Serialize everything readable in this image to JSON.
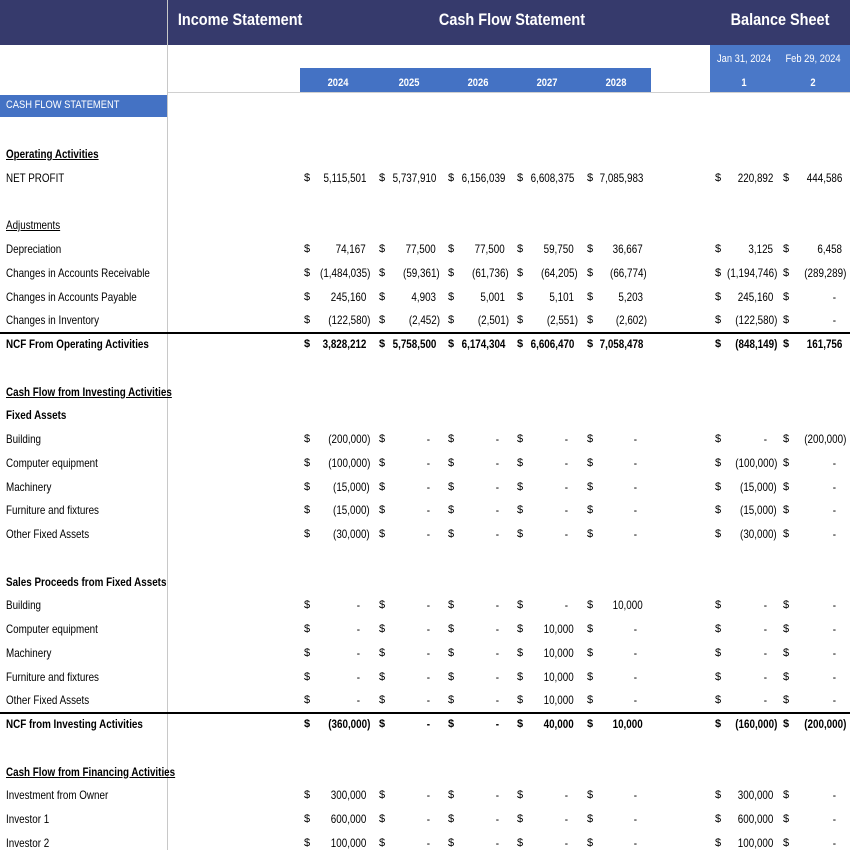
{
  "tabs": {
    "income": "Income Statement",
    "cash_flow": "Cash Flow Statement",
    "balance": "Balance Sheet"
  },
  "years": [
    "2024",
    "2025",
    "2026",
    "2027",
    "2028"
  ],
  "balance_columns": [
    {
      "date": "Jan 31, 2024",
      "index": "1"
    },
    {
      "date": "Feb 29, 2024",
      "index": "2"
    }
  ],
  "section_label": "CASH FLOW STATEMENT",
  "currency": "$",
  "sections": [
    [
      {
        "label": "Operating Activities",
        "style": "heading"
      },
      {
        "label": "NET PROFIT",
        "style": "item",
        "years": [
          "5,115,501",
          "5,737,910",
          "6,156,039",
          "6,608,375",
          "7,085,983"
        ],
        "balance": [
          "220,892",
          "444,586"
        ]
      }
    ],
    [
      {
        "label": "Adjustments",
        "style": "underline"
      },
      {
        "label": "Depreciation",
        "style": "item",
        "years": [
          "74,167",
          "77,500",
          "77,500",
          "59,750",
          "36,667"
        ],
        "balance": [
          "3,125",
          "6,458"
        ]
      },
      {
        "label": "Changes in Accounts Receivable",
        "style": "item",
        "years": [
          "(1,484,035)",
          "(59,361)",
          "(61,736)",
          "(64,205)",
          "(66,774)"
        ],
        "balance": [
          "(1,194,746)",
          "(289,289)"
        ]
      },
      {
        "label": "Changes in Accounts Payable",
        "style": "item",
        "years": [
          "245,160",
          "4,903",
          "5,001",
          "5,101",
          "5,203"
        ],
        "balance": [
          "245,160",
          "-"
        ]
      },
      {
        "label": "Changes in Inventory",
        "style": "item",
        "years": [
          "(122,580)",
          "(2,452)",
          "(2,501)",
          "(2,551)",
          "(2,602)"
        ],
        "balance": [
          "(122,580)",
          "-"
        ]
      },
      {
        "label": "NCF From Operating Activities",
        "style": "total",
        "years": [
          "3,828,212",
          "5,758,500",
          "6,174,304",
          "6,606,470",
          "7,058,478"
        ],
        "balance": [
          "(848,149)",
          "161,756"
        ]
      }
    ],
    [
      {
        "label": "Cash Flow from Investing Activities",
        "style": "heading"
      },
      {
        "label": "Fixed Assets",
        "style": "group"
      },
      {
        "label": "Building",
        "style": "item",
        "years": [
          "(200,000)",
          "-",
          "-",
          "-",
          "-"
        ],
        "balance": [
          "-",
          "(200,000)"
        ]
      },
      {
        "label": "Computer equipment",
        "style": "item",
        "years": [
          "(100,000)",
          "-",
          "-",
          "-",
          "-"
        ],
        "balance": [
          "(100,000)",
          "-"
        ]
      },
      {
        "label": "Machinery",
        "style": "item",
        "years": [
          "(15,000)",
          "-",
          "-",
          "-",
          "-"
        ],
        "balance": [
          "(15,000)",
          "-"
        ]
      },
      {
        "label": "Furniture and fixtures",
        "style": "item",
        "years": [
          "(15,000)",
          "-",
          "-",
          "-",
          "-"
        ],
        "balance": [
          "(15,000)",
          "-"
        ]
      },
      {
        "label": "Other Fixed Assets",
        "style": "item",
        "years": [
          "(30,000)",
          "-",
          "-",
          "-",
          "-"
        ],
        "balance": [
          "(30,000)",
          "-"
        ]
      }
    ],
    [
      {
        "label": "Sales Proceeds from Fixed Assets",
        "style": "group"
      },
      {
        "label": "Building",
        "style": "item",
        "years": [
          "-",
          "-",
          "-",
          "-",
          "10,000"
        ],
        "balance": [
          "-",
          "-"
        ]
      },
      {
        "label": "Computer equipment",
        "style": "item",
        "years": [
          "-",
          "-",
          "-",
          "10,000",
          "-"
        ],
        "balance": [
          "-",
          "-"
        ]
      },
      {
        "label": "Machinery",
        "style": "item",
        "years": [
          "-",
          "-",
          "-",
          "10,000",
          "-"
        ],
        "balance": [
          "-",
          "-"
        ]
      },
      {
        "label": "Furniture and fixtures",
        "style": "item",
        "years": [
          "-",
          "-",
          "-",
          "10,000",
          "-"
        ],
        "balance": [
          "-",
          "-"
        ]
      },
      {
        "label": "Other Fixed Assets",
        "style": "item",
        "years": [
          "-",
          "-",
          "-",
          "10,000",
          "-"
        ],
        "balance": [
          "-",
          "-"
        ]
      },
      {
        "label": "NCF from Investing Activities",
        "style": "total",
        "years": [
          "(360,000)",
          "-",
          "-",
          "40,000",
          "10,000"
        ],
        "balance": [
          "(160,000)",
          "(200,000)"
        ]
      }
    ],
    [
      {
        "label": "Cash Flow from Financing Activities",
        "style": "heading"
      },
      {
        "label": "Investment from Owner",
        "style": "item",
        "years": [
          "300,000",
          "-",
          "-",
          "-",
          "-"
        ],
        "balance": [
          "300,000",
          "-"
        ]
      },
      {
        "label": "Investor 1",
        "style": "item",
        "years": [
          "600,000",
          "-",
          "-",
          "-",
          "-"
        ],
        "balance": [
          "600,000",
          "-"
        ]
      },
      {
        "label": "Investor 2",
        "style": "item",
        "years": [
          "100,000",
          "-",
          "-",
          "-",
          "-"
        ],
        "balance": [
          "100,000",
          "-"
        ]
      }
    ]
  ]
}
